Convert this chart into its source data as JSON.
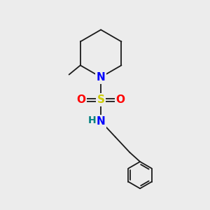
{
  "background_color": "#ececec",
  "bond_color": "#1a1a1a",
  "bond_width": 1.3,
  "atom_colors": {
    "N": "#0000ff",
    "S": "#cccc00",
    "O": "#ff0000",
    "H": "#008080",
    "C": "#000000"
  },
  "font_size_atoms": 11,
  "font_size_h": 10,
  "figsize": [
    3.0,
    3.0
  ],
  "dpi": 100,
  "xlim": [
    0,
    10
  ],
  "ylim": [
    0,
    10
  ]
}
